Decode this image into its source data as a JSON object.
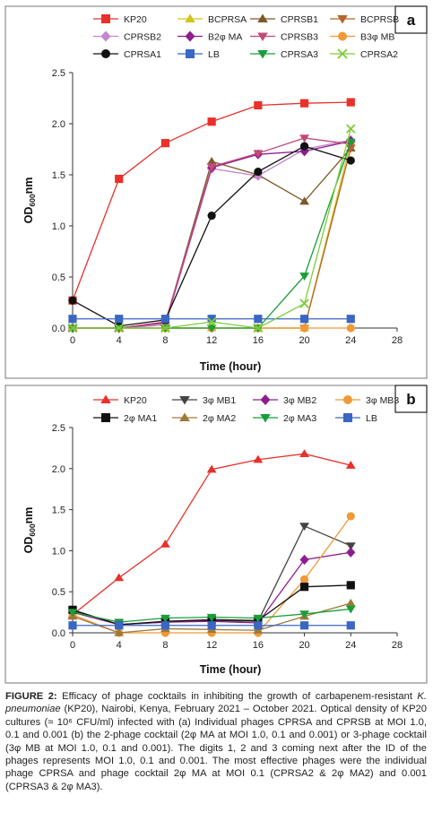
{
  "chart_data": [
    {
      "type": "line",
      "panel_label": "a",
      "xlabel": "Time (hour)",
      "ylabel": "OD",
      "ylabel_sub": "600",
      "ylabel_tail": "nm",
      "xlim": [
        0,
        28
      ],
      "ylim": [
        0,
        2.5
      ],
      "x_ticks": [
        0,
        4,
        8,
        12,
        16,
        20,
        24,
        28
      ],
      "x_tick_labels": [
        "0",
        "4",
        "8",
        "12",
        "16",
        "20",
        "24",
        "28"
      ],
      "y_ticks": [
        0,
        0.5,
        1,
        1.5,
        2,
        2.5
      ],
      "y_tick_labels": [
        "0.0",
        "0.5",
        "1.0",
        "1.5",
        "2.0",
        "2.5"
      ],
      "grid": false,
      "legend_placement": "top",
      "x": [
        0,
        4,
        8,
        12,
        16,
        20,
        24
      ],
      "series": [
        {
          "name": "KP20",
          "color": "#e8312b",
          "marker": "square",
          "values": [
            0.27,
            1.46,
            1.81,
            2.02,
            2.18,
            2.2,
            2.21
          ]
        },
        {
          "name": "BCPRSA",
          "color": "#d4c41c",
          "marker": "triangle-up",
          "values": [
            0.0,
            0.0,
            0.0,
            0.0,
            0.0,
            0.0,
            1.82
          ]
        },
        {
          "name": "CPRSB1",
          "color": "#7b5a2a",
          "marker": "triangle-up",
          "values": [
            0.0,
            0.0,
            0.05,
            1.63,
            1.5,
            1.24,
            1.76
          ]
        },
        {
          "name": "BCPRSB",
          "color": "#b5652a",
          "marker": "triangle-down",
          "values": [
            0.0,
            0.0,
            0.0,
            0.0,
            0.0,
            0.0,
            1.76
          ]
        },
        {
          "name": "CPRSB2",
          "color": "#c486cf",
          "marker": "diamond",
          "values": [
            0.0,
            0.0,
            0.03,
            1.56,
            1.49,
            1.75,
            1.84
          ]
        },
        {
          "name": "B2φ MA",
          "color": "#8e1d8e",
          "marker": "diamond",
          "values": [
            0.0,
            0.0,
            0.05,
            1.57,
            1.7,
            1.73,
            1.83
          ]
        },
        {
          "name": "CPRSB3",
          "color": "#c04a78",
          "marker": "triangle-down",
          "values": [
            0.0,
            0.0,
            0.06,
            1.58,
            1.71,
            1.86,
            1.8
          ]
        },
        {
          "name": "B3φ MB",
          "color": "#ef9a36",
          "marker": "circle",
          "values": [
            0.0,
            0.0,
            0.0,
            0.0,
            0.0,
            0.0,
            0.0
          ]
        },
        {
          "name": "CPRSA1",
          "color": "#111111",
          "marker": "circle",
          "values": [
            0.27,
            0.02,
            0.08,
            1.1,
            1.53,
            1.78,
            1.64
          ]
        },
        {
          "name": "LB",
          "color": "#3a66c4",
          "marker": "square",
          "values": [
            0.09,
            0.09,
            0.09,
            0.09,
            0.09,
            0.09,
            0.09
          ]
        },
        {
          "name": "CPRSA3",
          "color": "#1a9e3a",
          "marker": "triangle-down",
          "values": [
            0.0,
            0.0,
            0.0,
            0.0,
            0.0,
            0.51,
            1.82
          ]
        },
        {
          "name": "CPRSA2",
          "color": "#7dcc3b",
          "marker": "x",
          "values": [
            0.0,
            0.0,
            0.0,
            0.06,
            0.0,
            0.24,
            1.95
          ]
        }
      ]
    },
    {
      "type": "line",
      "panel_label": "b",
      "xlabel": "Time (hour)",
      "ylabel": "OD",
      "ylabel_sub": "600",
      "ylabel_tail": "nm",
      "xlim": [
        0,
        28
      ],
      "ylim": [
        0,
        2.5
      ],
      "x_ticks": [
        0,
        4,
        8,
        12,
        16,
        20,
        24,
        28
      ],
      "x_tick_labels": [
        "0",
        "4",
        "8",
        "12",
        "16",
        "20",
        "24",
        "28"
      ],
      "y_ticks": [
        0,
        0.5,
        1,
        1.5,
        2,
        2.5
      ],
      "y_tick_labels": [
        "0.0",
        "0.5",
        "1.0",
        "1.5",
        "2.0",
        "2.5"
      ],
      "grid": false,
      "legend_placement": "top",
      "x": [
        0,
        4,
        8,
        12,
        16,
        20,
        24
      ],
      "series": [
        {
          "name": "KP20",
          "color": "#e8312b",
          "marker": "triangle-up",
          "values": [
            0.22,
            0.67,
            1.08,
            1.99,
            2.11,
            2.18,
            2.04
          ]
        },
        {
          "name": "3φ MB1",
          "color": "#444444",
          "marker": "triangle-down",
          "values": [
            0.27,
            0.1,
            0.13,
            0.15,
            0.14,
            1.3,
            1.06
          ]
        },
        {
          "name": "3φ MB2",
          "color": "#8e1d8e",
          "marker": "diamond",
          "values": [
            0.25,
            0.1,
            0.13,
            0.14,
            0.12,
            0.89,
            0.98
          ]
        },
        {
          "name": "3φ MB3",
          "color": "#ef9a36",
          "marker": "circle",
          "values": [
            0.22,
            0.0,
            0.0,
            0.0,
            0.0,
            0.65,
            1.42
          ]
        },
        {
          "name": "2φ MA1",
          "color": "#111111",
          "marker": "square",
          "values": [
            0.28,
            0.1,
            0.14,
            0.16,
            0.15,
            0.56,
            0.58
          ]
        },
        {
          "name": "2φ MA2",
          "color": "#9c7a3c",
          "marker": "triangle-up",
          "values": [
            0.2,
            0.0,
            0.05,
            0.04,
            0.03,
            0.2,
            0.36
          ]
        },
        {
          "name": "2φ MA3",
          "color": "#1a9e3a",
          "marker": "triangle-down",
          "values": [
            0.25,
            0.13,
            0.18,
            0.19,
            0.18,
            0.23,
            0.29
          ]
        },
        {
          "name": "LB",
          "color": "#3a66c4",
          "marker": "square",
          "values": [
            0.09,
            0.09,
            0.09,
            0.09,
            0.09,
            0.09,
            0.09
          ]
        }
      ]
    }
  ],
  "caption": {
    "label": "FIGURE 2:",
    "text_1": " Efficacy of phage cocktails in inhibiting the growth of carbapenem-resistant ",
    "organism": "K. pneumoniae",
    "text_2": " (KP20), Nairobi, Kenya, February 2021 – October 2021. Optical density of KP20 cultures (≈ 10⁶ CFU/ml) infected with (a) Individual phages CPRSA and CPRSB at MOI 1.0, 0.1 and 0.001 (b) the 2-phage cocktail (2φ MA at MOI 1.0, 0.1 and 0.001) or 3-phage cocktail (3φ MB at MOI 1.0, 0.1 and 0.001). The digits 1, 2 and 3 coming next after the ID of the phages represents MOI 1.0, 0.1 and 0.001. The most effective phages were the individual phage CPRSA and phage cocktail 2φ MA at MOI 0.1 (CPRSA2 & 2φ MA2) and 0.001 (CPRSA3 & 2φ MA3)."
  }
}
